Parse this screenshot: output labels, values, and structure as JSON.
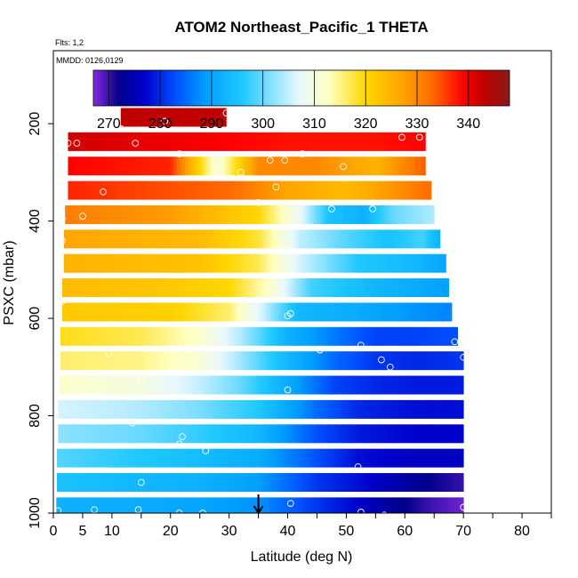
{
  "chart_data": {
    "type": "heatmap",
    "title": "ATOM2 Northeast_Pacific_1 THETA",
    "flights_note": "Flts: 1,2",
    "date_note": "MMDD: 0126,0129",
    "xlabel": "Latitude (deg N)",
    "ylabel": "PSXC (mbar)",
    "xlim": [
      0,
      85
    ],
    "ylim": [
      1000,
      50
    ],
    "y_inverted": true,
    "x_ticks": [
      0,
      5,
      10,
      20,
      30,
      40,
      50,
      60,
      70,
      80
    ],
    "x_tick_labels": [
      "0",
      "5",
      "10",
      "20",
      "30",
      "40",
      "50",
      "60",
      "70",
      "80"
    ],
    "y_ticks": [
      200,
      400,
      600,
      800,
      1000
    ],
    "y_tick_labels": [
      "200",
      "400",
      "600",
      "800",
      "1000"
    ],
    "colorbar": {
      "min": 267,
      "max": 348,
      "ticks": [
        270,
        280,
        290,
        300,
        310,
        320,
        330,
        340
      ],
      "tick_labels": [
        "270",
        "280",
        "290",
        "300",
        "310",
        "320",
        "330",
        "340"
      ],
      "colors": [
        "#8a2be2",
        "#00008b",
        "#0000cd",
        "#0050ff",
        "#00a0ff",
        "#1ec8ff",
        "#e8f8ff",
        "#ffffc0",
        "#ffd700",
        "#ffa500",
        "#ff6a00",
        "#ff0000",
        "#c00000",
        "#8b1a1a"
      ],
      "color_positions": [
        267,
        272,
        277,
        283,
        289,
        296,
        307,
        313,
        320,
        327,
        333,
        339,
        343,
        348
      ]
    },
    "bins": [
      {
        "p": 187,
        "lat_range": [
          11.5,
          29.5
        ],
        "values": [
          [
            11.5,
            343
          ],
          [
            29.5,
            343
          ]
        ]
      },
      {
        "p": 237,
        "lat_range": [
          2.5,
          63.5
        ],
        "values": [
          [
            2.5,
            342
          ],
          [
            20,
            340
          ],
          [
            40,
            338
          ],
          [
            55,
            338
          ],
          [
            63.5,
            339
          ]
        ]
      },
      {
        "p": 287,
        "lat_range": [
          2.5,
          63.5
        ],
        "values": [
          [
            2.5,
            339
          ],
          [
            20,
            337
          ],
          [
            28,
            310
          ],
          [
            35,
            330
          ],
          [
            45,
            330
          ],
          [
            55,
            325
          ],
          [
            63.5,
            334
          ]
        ]
      },
      {
        "p": 337,
        "lat_range": [
          2.5,
          64.5
        ],
        "values": [
          [
            2.5,
            337
          ],
          [
            30,
            333
          ],
          [
            40,
            327
          ],
          [
            50,
            324
          ],
          [
            60,
            330
          ],
          [
            64.5,
            333
          ]
        ]
      },
      {
        "p": 387,
        "lat_range": [
          2,
          65
        ],
        "values": [
          [
            2,
            331
          ],
          [
            20,
            328
          ],
          [
            35,
            320
          ],
          [
            42,
            308
          ],
          [
            47,
            295
          ],
          [
            53,
            292
          ],
          [
            58,
            300
          ],
          [
            65,
            304
          ]
        ]
      },
      {
        "p": 437,
        "lat_range": [
          1.8,
          66
        ],
        "values": [
          [
            1.8,
            327
          ],
          [
            25,
            324
          ],
          [
            35,
            318
          ],
          [
            42,
            305
          ],
          [
            50,
            299
          ],
          [
            57,
            295
          ],
          [
            63,
            298
          ],
          [
            66,
            292
          ]
        ]
      },
      {
        "p": 487,
        "lat_range": [
          1.8,
          67
        ],
        "values": [
          [
            1.8,
            325
          ],
          [
            25,
            323
          ],
          [
            35,
            317
          ],
          [
            42,
            306
          ],
          [
            52,
            296
          ],
          [
            62,
            293
          ],
          [
            67,
            290
          ]
        ]
      },
      {
        "p": 537,
        "lat_range": [
          1.5,
          67.5
        ],
        "values": [
          [
            1.5,
            324
          ],
          [
            20,
            322
          ],
          [
            30,
            320
          ],
          [
            37,
            312
          ],
          [
            44,
            298
          ],
          [
            55,
            293
          ],
          [
            62,
            291
          ],
          [
            67.5,
            289
          ]
        ]
      },
      {
        "p": 587,
        "lat_range": [
          1.5,
          68
        ],
        "values": [
          [
            1.5,
            322
          ],
          [
            20,
            321
          ],
          [
            30,
            316
          ],
          [
            36,
            305
          ],
          [
            42,
            293
          ],
          [
            52,
            291
          ],
          [
            62,
            288
          ],
          [
            68,
            287
          ]
        ]
      },
      {
        "p": 637,
        "lat_range": [
          1.2,
          69
        ],
        "values": [
          [
            1.2,
            319
          ],
          [
            15,
            317
          ],
          [
            25,
            312
          ],
          [
            32,
            304
          ],
          [
            40,
            292
          ],
          [
            48,
            286
          ],
          [
            55,
            282
          ],
          [
            62,
            282
          ],
          [
            69,
            283
          ]
        ]
      },
      {
        "p": 687,
        "lat_range": [
          1.2,
          70
        ],
        "values": [
          [
            1.2,
            316
          ],
          [
            15,
            315
          ],
          [
            25,
            311
          ],
          [
            32,
            303
          ],
          [
            40,
            293
          ],
          [
            48,
            285
          ],
          [
            55,
            281
          ],
          [
            62,
            280
          ],
          [
            70,
            281
          ]
        ]
      },
      {
        "p": 737,
        "lat_range": [
          1,
          70
        ],
        "values": [
          [
            1,
            312
          ],
          [
            15,
            310
          ],
          [
            25,
            305
          ],
          [
            32,
            300
          ],
          [
            40,
            291
          ],
          [
            48,
            282
          ],
          [
            55,
            280
          ],
          [
            62,
            279
          ],
          [
            70,
            279
          ]
        ]
      },
      {
        "p": 787,
        "lat_range": [
          0.8,
          70
        ],
        "values": [
          [
            0.8,
            306
          ],
          [
            15,
            304
          ],
          [
            25,
            301
          ],
          [
            35,
            296
          ],
          [
            45,
            285
          ],
          [
            52,
            280
          ],
          [
            62,
            278
          ],
          [
            70,
            278
          ]
        ]
      },
      {
        "p": 837,
        "lat_range": [
          0.8,
          70
        ],
        "values": [
          [
            0.8,
            302
          ],
          [
            15,
            300
          ],
          [
            25,
            297
          ],
          [
            35,
            293
          ],
          [
            45,
            283
          ],
          [
            52,
            279
          ],
          [
            62,
            277
          ],
          [
            70,
            277
          ]
        ]
      },
      {
        "p": 887,
        "lat_range": [
          0.6,
          70
        ],
        "values": [
          [
            0.6,
            299
          ],
          [
            15,
            296
          ],
          [
            25,
            294
          ],
          [
            35,
            291
          ],
          [
            45,
            283
          ],
          [
            52,
            278
          ],
          [
            62,
            276
          ],
          [
            70,
            276
          ]
        ]
      },
      {
        "p": 937,
        "lat_range": [
          0.6,
          70
        ],
        "values": [
          [
            0.6,
            295
          ],
          [
            15,
            293
          ],
          [
            25,
            292
          ],
          [
            35,
            289
          ],
          [
            45,
            281
          ],
          [
            52,
            278
          ],
          [
            58,
            275
          ],
          [
            64,
            272
          ],
          [
            70,
            270
          ]
        ]
      },
      {
        "p": 987,
        "lat_range": [
          0.5,
          70
        ],
        "values": [
          [
            0.5,
            292
          ],
          [
            15,
            291
          ],
          [
            25,
            290
          ],
          [
            35,
            288
          ],
          [
            45,
            281
          ],
          [
            52,
            277
          ],
          [
            58,
            273
          ],
          [
            64,
            270
          ],
          [
            70,
            268
          ]
        ]
      }
    ],
    "observations": [
      {
        "lat": 11.5,
        "p": 210
      },
      {
        "lat": 19,
        "p": 195
      },
      {
        "lat": 29.5,
        "p": 178
      },
      {
        "lat": 2.5,
        "p": 240
      },
      {
        "lat": 4,
        "p": 240
      },
      {
        "lat": 14,
        "p": 240
      },
      {
        "lat": 59.5,
        "p": 228
      },
      {
        "lat": 62.5,
        "p": 228
      },
      {
        "lat": 21.5,
        "p": 262
      },
      {
        "lat": 37,
        "p": 275
      },
      {
        "lat": 39.5,
        "p": 275
      },
      {
        "lat": 42.5,
        "p": 262
      },
      {
        "lat": 49.5,
        "p": 288
      },
      {
        "lat": 32,
        "p": 300
      },
      {
        "lat": 8.5,
        "p": 340
      },
      {
        "lat": 38,
        "p": 330
      },
      {
        "lat": 35,
        "p": 362
      },
      {
        "lat": 5,
        "p": 390
      },
      {
        "lat": 1.5,
        "p": 395
      },
      {
        "lat": 47.5,
        "p": 375
      },
      {
        "lat": 54.5,
        "p": 375
      },
      {
        "lat": 1.5,
        "p": 440
      },
      {
        "lat": 1.5,
        "p": 565
      },
      {
        "lat": 40.5,
        "p": 590
      },
      {
        "lat": 40,
        "p": 595
      },
      {
        "lat": 68.5,
        "p": 648
      },
      {
        "lat": 52.5,
        "p": 655
      },
      {
        "lat": 56,
        "p": 685
      },
      {
        "lat": 57.5,
        "p": 700
      },
      {
        "lat": 45.5,
        "p": 665
      },
      {
        "lat": 70,
        "p": 680
      },
      {
        "lat": 9.5,
        "p": 672
      },
      {
        "lat": 15,
        "p": 730
      },
      {
        "lat": 5.5,
        "p": 750
      },
      {
        "lat": 40,
        "p": 747
      },
      {
        "lat": 13.5,
        "p": 815
      },
      {
        "lat": 21.5,
        "p": 858
      },
      {
        "lat": 22,
        "p": 843
      },
      {
        "lat": 26,
        "p": 872
      },
      {
        "lat": 52,
        "p": 905
      },
      {
        "lat": 15,
        "p": 937
      },
      {
        "lat": 0.8,
        "p": 995
      },
      {
        "lat": 7,
        "p": 993
      },
      {
        "lat": 14.5,
        "p": 993
      },
      {
        "lat": 21.5,
        "p": 1000
      },
      {
        "lat": 25.5,
        "p": 1000
      },
      {
        "lat": 40.5,
        "p": 980
      },
      {
        "lat": 46.5,
        "p": 1010
      },
      {
        "lat": 52.5,
        "p": 998
      },
      {
        "lat": 56.5,
        "p": 1004
      },
      {
        "lat": 70,
        "p": 988
      }
    ],
    "arrow_lat": 35,
    "grid": false,
    "legend": "colorbar top"
  }
}
